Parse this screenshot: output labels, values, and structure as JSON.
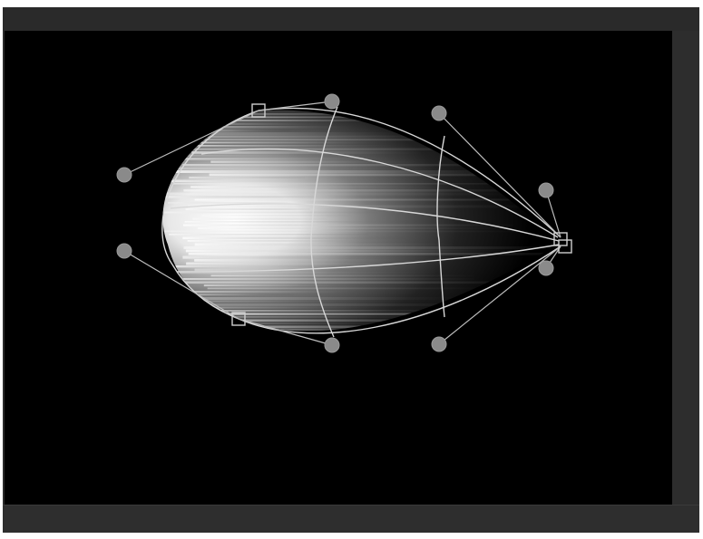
{
  "app": {
    "name": "",
    "mode": "warp-transform"
  },
  "colors": {
    "frame": "#2b2b2b",
    "canvas": "#000000",
    "mesh_line": "#d8d8d8",
    "handle_fill": "#8a8a8a",
    "anchor_stroke": "#cfcfcf"
  },
  "icons": {
    "anchor": "square-anchor-icon",
    "handle": "round-handle-icon"
  }
}
